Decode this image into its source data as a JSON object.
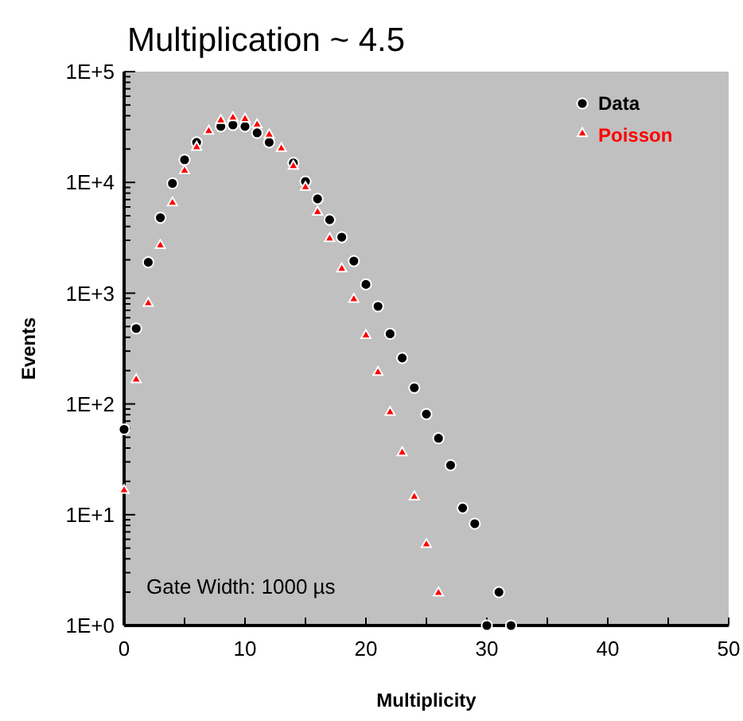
{
  "chart_data": {
    "type": "scatter",
    "title": "Multiplication ~ 4.5",
    "xlabel": "Multiplicity",
    "ylabel": "Events",
    "annotations": [
      "Gate Width: 1000 µs"
    ],
    "log": "y",
    "legend": "top right",
    "grid": false,
    "xlim": [
      0,
      50
    ],
    "xticks": [
      0,
      {
        "value": 5,
        "label": null
      },
      10,
      {
        "value": 15,
        "label": null
      },
      20,
      {
        "value": 25,
        "label": null
      },
      30,
      {
        "value": 35,
        "label": null
      },
      40,
      {
        "value": 45,
        "label": null
      },
      50
    ],
    "ylim": [
      1,
      100000
    ],
    "yticks": [
      {
        "value": 1,
        "label": "1E+0"
      },
      {
        "value": 10,
        "label": "1E+1"
      },
      {
        "value": 100,
        "label": "1E+2"
      },
      {
        "value": 1000,
        "label": "1E+3"
      },
      {
        "value": 10000,
        "label": "1E+4"
      },
      {
        "value": 100000,
        "label": "1E+5"
      }
    ],
    "series": [
      {
        "name": "Data",
        "color": "#000000",
        "marker": "circle",
        "x": [
          0,
          1,
          2,
          3,
          4,
          5,
          6,
          8,
          9,
          10,
          11,
          12,
          14,
          15,
          16,
          17,
          18,
          19,
          20,
          21,
          22,
          23,
          24,
          25,
          26,
          27,
          28,
          29,
          30,
          31,
          32
        ],
        "values": [
          59,
          480,
          1900,
          4800,
          9800,
          16000,
          23000,
          32000,
          33000,
          32000,
          28000,
          23000,
          15000,
          10200,
          7100,
          4600,
          3200,
          1950,
          1200,
          760,
          430,
          260,
          140,
          81,
          49,
          28,
          11.5,
          8.3,
          1,
          2,
          1
        ]
      },
      {
        "name": "Poisson",
        "color": "#ff0000",
        "marker": "triangle",
        "x": [
          0,
          1,
          2,
          3,
          4,
          5,
          6,
          7,
          8,
          9,
          10,
          11,
          12,
          13,
          14,
          15,
          16,
          17,
          18,
          19,
          20,
          21,
          22,
          23,
          24,
          25,
          26
        ],
        "values": [
          16,
          160,
          780,
          2600,
          6300,
          12300,
          20000,
          28000,
          35000,
          37000,
          36000,
          32000,
          26000,
          19500,
          13500,
          8700,
          5200,
          3000,
          1600,
          850,
          400,
          186,
          81,
          35,
          14,
          5.2,
          1.9
        ]
      }
    ]
  }
}
